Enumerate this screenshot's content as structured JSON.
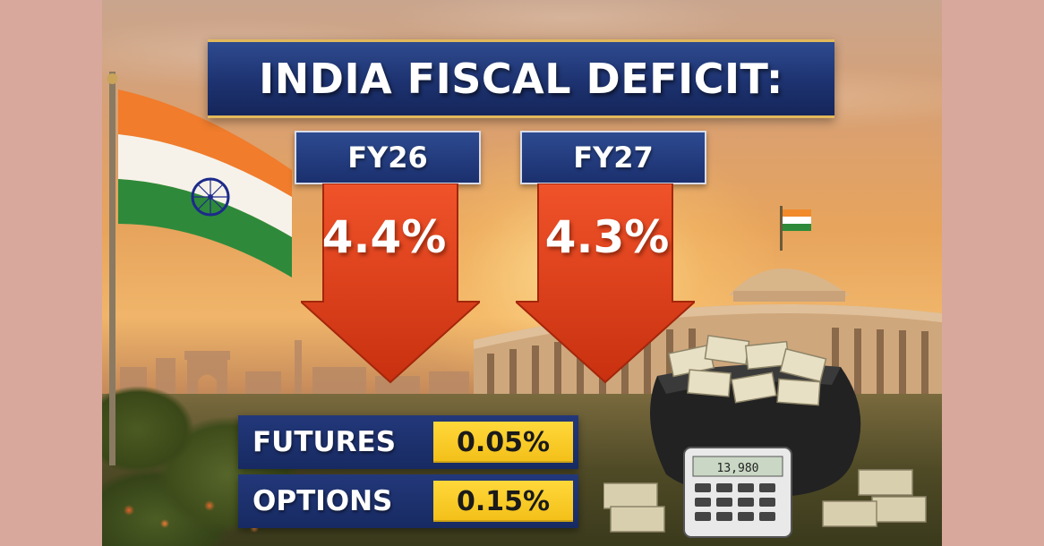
{
  "title": "INDIA FISCAL DEFICIT:",
  "deficits": [
    {
      "year": "FY26",
      "value": "4.4%"
    },
    {
      "year": "FY27",
      "value": "4.3%"
    }
  ],
  "rates": [
    {
      "name": "FUTURES",
      "value": "0.05%"
    },
    {
      "name": "OPTIONS",
      "value": "0.15%"
    }
  ],
  "calculator_display": "13,980",
  "colors": {
    "banner_navy": "#1d3270",
    "arrow_red": "#e8471e",
    "highlight_yellow": "#f7c820",
    "page_background": "#d8a89c"
  }
}
